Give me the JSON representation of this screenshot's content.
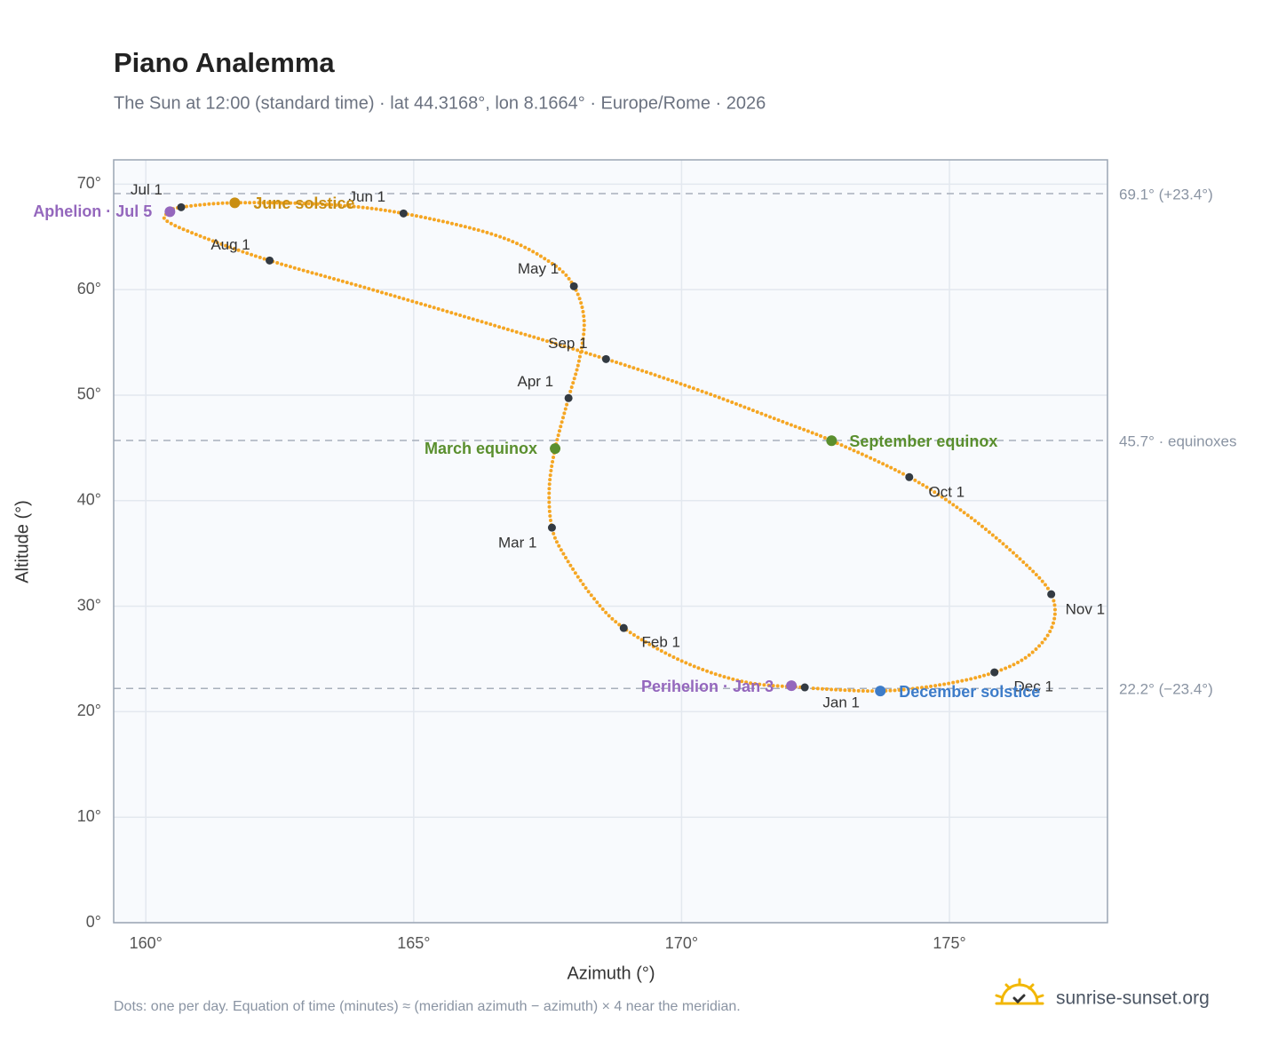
{
  "chart_data": {
    "type": "analemma",
    "title": "Piano Analemma",
    "subtitle": "The Sun at 12:00 (standard time) · lat 44.3168°, lon 8.1664° · Europe/Rome · 2026",
    "x_label": "Azimuth (°)",
    "y_label": "Altitude (°)",
    "xlim": [
      159.4,
      177.95
    ],
    "ylim": [
      0,
      72.3
    ],
    "xticks": [
      {
        "value": 160,
        "label": "160°"
      },
      {
        "value": 165,
        "label": "165°"
      },
      {
        "value": 170,
        "label": "170°"
      },
      {
        "value": 175,
        "label": "175°"
      }
    ],
    "yticks": [
      {
        "value": 0,
        "label": "0°"
      },
      {
        "value": 10,
        "label": "10°"
      },
      {
        "value": 20,
        "label": "20°"
      },
      {
        "value": 30,
        "label": "30°"
      },
      {
        "value": 40,
        "label": "40°"
      },
      {
        "value": 50,
        "label": "50°"
      },
      {
        "value": 60,
        "label": "60°"
      },
      {
        "value": 70,
        "label": "70°"
      }
    ],
    "grid": true,
    "curve": {
      "color": "#f5a623",
      "x": [
        172.3,
        171.19,
        170.03,
        168.92,
        168.34,
        167.81,
        167.58,
        167.53,
        167.64,
        167.89,
        168.09,
        168.18,
        167.99,
        167.55,
        166.55,
        164.81,
        163.4,
        161.66,
        160.66,
        160.45,
        160.38,
        161.08,
        162.31,
        164.06,
        166.05,
        168.59,
        170.36,
        171.86,
        172.8,
        174.25,
        175.34,
        176.33,
        176.9,
        176.92,
        176.5,
        175.84,
        174.84,
        173.71,
        172.44
      ],
      "y": [
        22.3,
        22.8,
        24.74,
        27.93,
        30.88,
        34.83,
        37.44,
        41.14,
        44.93,
        49.72,
        53.34,
        57.13,
        60.32,
        62.59,
        65.12,
        67.22,
        68.06,
        68.23,
        67.81,
        67.39,
        66.55,
        64.95,
        62.76,
        60.24,
        57.29,
        53.42,
        50.4,
        47.53,
        45.68,
        42.23,
        38.62,
        34.41,
        31.13,
        28.1,
        25.41,
        23.73,
        22.55,
        21.96,
        22.21
      ]
    },
    "months": {
      "color": "#333a42",
      "labels": [
        "Jan 1",
        "Feb 1",
        "Mar 1",
        "Apr 1",
        "May 1",
        "Jun 1",
        "Jul 1",
        "Aug 1",
        "Sep 1",
        "Oct 1",
        "Nov 1",
        "Dec 1"
      ],
      "x": [
        172.3,
        168.92,
        167.58,
        167.89,
        167.99,
        164.81,
        160.66,
        162.31,
        168.59,
        174.25,
        176.9,
        175.84
      ],
      "y": [
        22.3,
        27.93,
        37.44,
        49.72,
        60.32,
        67.22,
        67.81,
        62.76,
        53.42,
        42.23,
        31.13,
        23.73
      ]
    },
    "events": [
      {
        "name": "March equinox",
        "color": "#5a8f2e",
        "x": 167.64,
        "y": 44.93
      },
      {
        "name": "June solstice",
        "color": "#c98e12",
        "x": 161.66,
        "y": 68.23
      },
      {
        "name": "September equinox",
        "color": "#5a8f2e",
        "x": 172.8,
        "y": 45.68
      },
      {
        "name": "December solstice",
        "color": "#3d7cc9",
        "x": 173.71,
        "y": 21.96
      },
      {
        "name": "Aphelion · Jul 5",
        "color": "#9467bd",
        "x": 160.45,
        "y": 67.39
      },
      {
        "name": "Perihelion · Jan 3",
        "color": "#9467bd",
        "x": 172.05,
        "y": 22.46
      }
    ],
    "reference_lines": [
      {
        "value": 69.1,
        "label": "69.1° (+23.4°)"
      },
      {
        "value": 45.7,
        "label": "45.7° · equinoxes"
      },
      {
        "value": 22.2,
        "label": "22.2° (−23.4°)"
      }
    ],
    "footnote": "Dots: one per day. Equation of time (minutes) ≈ (meridian azimuth − azimuth) × 4 near the meridian.",
    "brand": "sunrise-sunset.org"
  }
}
